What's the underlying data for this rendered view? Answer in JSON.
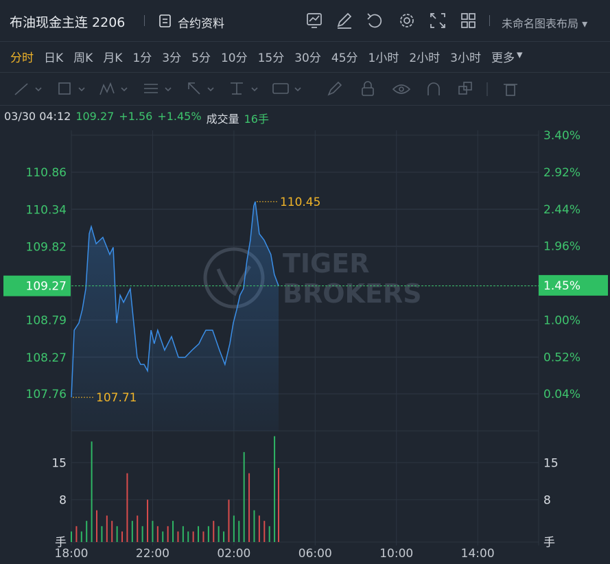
{
  "header": {
    "title": "布油现金主连 2206",
    "info": "合约资料",
    "layout": "未命名图表布局"
  },
  "periods": {
    "items": [
      "分时",
      "日K",
      "周K",
      "月K",
      "1分",
      "3分",
      "5分",
      "10分",
      "15分",
      "30分",
      "45分",
      "1小时",
      "2小时",
      "3小时",
      "更多"
    ],
    "active": 0
  },
  "status": {
    "time": "03/30 04:12",
    "price": "109.27",
    "change": "+1.56",
    "percent": "+1.45%",
    "volume_label": "成交量",
    "volume": "16手"
  },
  "watermark": {
    "line1": "TIGER",
    "line2": "BROKERS"
  },
  "chart_data": [
    {
      "type": "line",
      "color": "#3b8fe8",
      "x": [
        0,
        0.14,
        0.37,
        0.54,
        0.71,
        0.88,
        0.98,
        1.22,
        1.55,
        1.89,
        2.06,
        2.23,
        2.4,
        2.57,
        2.9,
        3.07,
        3.24,
        3.41,
        3.58,
        3.75,
        3.92,
        4.08,
        4.25,
        4.59,
        4.93,
        5.27,
        5.6,
        5.94,
        6.28,
        6.45,
        6.62,
        6.95,
        7.29,
        7.56,
        7.8,
        7.97,
        8.14,
        8.3,
        8.47,
        8.64,
        8.81,
        8.98,
        9.05,
        9.25,
        9.49,
        9.82,
        9.99,
        10.2
      ],
      "values": [
        107.71,
        108.65,
        108.75,
        108.94,
        109.23,
        110.0,
        110.1,
        109.86,
        109.95,
        109.71,
        109.81,
        108.75,
        109.14,
        109.04,
        109.23,
        108.75,
        108.27,
        108.17,
        108.17,
        108.08,
        108.65,
        108.46,
        108.65,
        108.37,
        108.56,
        108.27,
        108.27,
        108.37,
        108.46,
        108.56,
        108.65,
        108.65,
        108.37,
        108.17,
        108.46,
        108.75,
        108.94,
        109.14,
        109.23,
        109.62,
        109.91,
        110.39,
        110.45,
        110.0,
        109.91,
        109.71,
        109.43,
        109.27
      ],
      "xlim": [
        0,
        23
      ],
      "xticks": [
        {
          "value": 0,
          "label": "18:00"
        },
        {
          "value": 4,
          "label": "22:00"
        },
        {
          "value": 8,
          "label": "02:00"
        },
        {
          "value": 12,
          "label": "06:00"
        },
        {
          "value": 16,
          "label": "10:00"
        },
        {
          "value": 20,
          "label": "14:00"
        }
      ],
      "ylim": [
        107.24,
        111.38
      ],
      "yticks": [
        107.76,
        108.27,
        108.79,
        109.82,
        110.34,
        110.86
      ],
      "y2lim": [
        -0.44,
        3.4
      ],
      "y2ticks": [
        {
          "value": 0.04,
          "label": "0.04%"
        },
        {
          "value": 0.52,
          "label": "0.52%"
        },
        {
          "value": 1.0,
          "label": "1.00%"
        },
        {
          "value": 1.96,
          "label": "1.96%"
        },
        {
          "value": 2.44,
          "label": "2.44%"
        },
        {
          "value": 2.92,
          "label": "2.92%"
        },
        {
          "value": 3.4,
          "label": "3.40%"
        }
      ],
      "annotations": [
        {
          "x": 9.05,
          "y": 110.45
        },
        {
          "x": 0,
          "y": 107.71
        }
      ],
      "current": {
        "y": 109.27,
        "y2": {
          "value": 1.45,
          "label": "1.45%"
        }
      },
      "grid": true
    },
    {
      "type": "bar",
      "x": [
        0,
        0.25,
        0.5,
        0.75,
        1,
        1.25,
        1.5,
        1.75,
        2,
        2.25,
        2.5,
        2.75,
        3,
        3.25,
        3.5,
        3.75,
        4,
        4.25,
        4.5,
        4.75,
        5,
        5.25,
        5.5,
        5.75,
        6,
        6.25,
        6.5,
        6.75,
        7,
        7.25,
        7.5,
        7.75,
        8,
        8.25,
        8.5,
        8.75,
        9,
        9.25,
        9.5,
        9.75,
        10,
        10.2
      ],
      "values": [
        2,
        3,
        2,
        4,
        19,
        6,
        3,
        5,
        4,
        3,
        2,
        13,
        4,
        5,
        3,
        8,
        4,
        3,
        2,
        3,
        4,
        2,
        3,
        2,
        2,
        3,
        2,
        3,
        4,
        3,
        2,
        8,
        5,
        4,
        17,
        13,
        6,
        5,
        4,
        3,
        20,
        14
      ],
      "colors": [
        "#2fb765",
        "#d94c4c",
        "#2fb765",
        "#2fb765",
        "#2fb765",
        "#d94c4c",
        "#2fb765",
        "#d94c4c",
        "#d94c4c",
        "#2fb765",
        "#d94c4c",
        "#d94c4c",
        "#2fb765",
        "#d94c4c",
        "#2fb765",
        "#d94c4c",
        "#2fb765",
        "#d94c4c",
        "#2fb765",
        "#d94c4c",
        "#2fb765",
        "#d94c4c",
        "#2fb765",
        "#2fb765",
        "#d94c4c",
        "#2fb765",
        "#d94c4c",
        "#2fb765",
        "#d94c4c",
        "#2fb765",
        "#2fb765",
        "#d94c4c",
        "#2fb765",
        "#2fb765",
        "#2fb765",
        "#d94c4c",
        "#2fb765",
        "#d94c4c",
        "#d94c4c",
        "#2fb765",
        "#2fb765",
        "#d94c4c"
      ],
      "xlim": [
        0,
        23
      ],
      "ylim": [
        0,
        21
      ],
      "yticks": [
        8,
        15
      ],
      "ylabel": "手"
    }
  ]
}
